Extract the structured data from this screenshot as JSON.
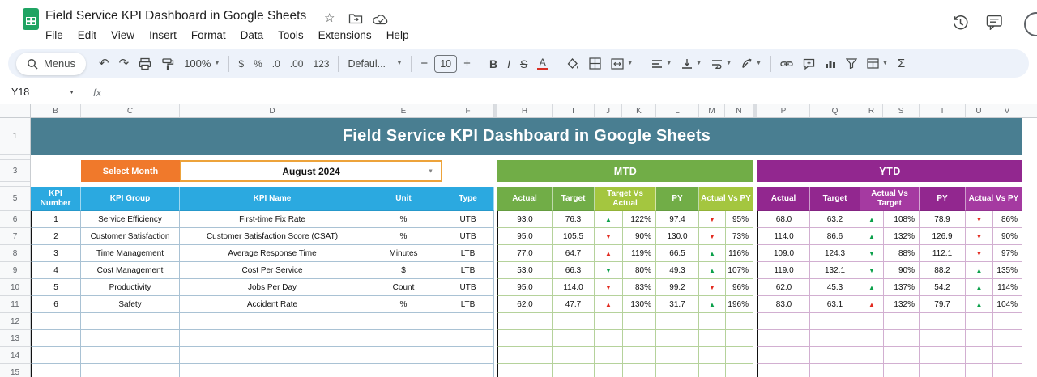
{
  "window": {
    "doc_title": "Field Service KPI Dashboard in Google Sheets",
    "menu_items": [
      "File",
      "Edit",
      "View",
      "Insert",
      "Format",
      "Data",
      "Tools",
      "Extensions",
      "Help"
    ]
  },
  "toolbar": {
    "menus_label": "Menus",
    "undo": "↶",
    "redo": "↷",
    "zoom_value": "100%",
    "currency": "$",
    "percent": "%",
    "decimal_decrease": ".0",
    "decimal_increase": ".00",
    "number_format": "123",
    "font_name": "Defaul...",
    "minus": "−",
    "font_size": "10",
    "plus": "+",
    "bold": "B",
    "italic": "I",
    "strikethrough": "S",
    "text_color": "A",
    "functions": "Σ"
  },
  "glyphs": {
    "caret": "▼",
    "star": "☆"
  },
  "formula_bar": {
    "cell_reference": "Y18",
    "fx_label": "fx"
  },
  "grid": {
    "column_letters": [
      "B",
      "C",
      "D",
      "E",
      "F",
      "H",
      "I",
      "J",
      "K",
      "L",
      "M",
      "N",
      "P",
      "Q",
      "R",
      "S",
      "T",
      "U",
      "V"
    ],
    "row_numbers": [
      "1",
      "3",
      "5",
      "6",
      "7",
      "8",
      "9",
      "10",
      "11",
      "12",
      "13",
      "14",
      "15"
    ],
    "empty_row_count": 4
  },
  "sheet": {
    "title_banner": "Field Service KPI Dashboard in Google Sheets",
    "select_month_label": "Select Month",
    "selected_month": "August 2024",
    "sections": {
      "mtd": "MTD",
      "ytd": "YTD"
    },
    "kpi_headers": {
      "number": "KPI Number",
      "group": "KPI Group",
      "name": "KPI Name",
      "unit": "Unit",
      "type": "Type"
    },
    "mtd_headers": {
      "actual": "Actual",
      "target": "Target",
      "target_vs_actual": "Target Vs Actual",
      "py": "PY",
      "actual_vs_py": "Actual Vs PY"
    },
    "ytd_headers": {
      "actual": "Actual",
      "target": "Target",
      "actual_vs_target": "Actual Vs Target",
      "py": "PY",
      "actual_vs_py": "Actual Vs PY"
    },
    "rows": [
      {
        "kpi_number": "1",
        "kpi_group": "Service Efficiency",
        "kpi_name": "First-time Fix Rate",
        "unit": "%",
        "type": "UTB",
        "mtd": {
          "actual": "93.0",
          "target": "76.3",
          "target_vs_actual": {
            "arrow": "▲",
            "trend": "good",
            "value": "122%"
          },
          "py": "97.4",
          "actual_vs_py": {
            "arrow": "▼",
            "trend": "bad",
            "value": "95%"
          }
        },
        "ytd": {
          "actual": "68.0",
          "target": "63.2",
          "actual_vs_target": {
            "arrow": "▲",
            "trend": "good",
            "value": "108%"
          },
          "py": "78.9",
          "actual_vs_py": {
            "arrow": "▼",
            "trend": "bad",
            "value": "86%"
          }
        }
      },
      {
        "kpi_number": "2",
        "kpi_group": "Customer Satisfaction",
        "kpi_name": "Customer Satisfaction Score (CSAT)",
        "unit": "%",
        "type": "UTB",
        "mtd": {
          "actual": "95.0",
          "target": "105.5",
          "target_vs_actual": {
            "arrow": "▼",
            "trend": "bad",
            "value": "90%"
          },
          "py": "130.0",
          "actual_vs_py": {
            "arrow": "▼",
            "trend": "bad",
            "value": "73%"
          }
        },
        "ytd": {
          "actual": "114.0",
          "target": "86.6",
          "actual_vs_target": {
            "arrow": "▲",
            "trend": "good",
            "value": "132%"
          },
          "py": "126.9",
          "actual_vs_py": {
            "arrow": "▼",
            "trend": "bad",
            "value": "90%"
          }
        }
      },
      {
        "kpi_number": "3",
        "kpi_group": "Time Management",
        "kpi_name": "Average Response Time",
        "unit": "Minutes",
        "type": "LTB",
        "mtd": {
          "actual": "77.0",
          "target": "64.7",
          "target_vs_actual": {
            "arrow": "▲",
            "trend": "bad",
            "value": "119%"
          },
          "py": "66.5",
          "actual_vs_py": {
            "arrow": "▲",
            "trend": "good",
            "value": "116%"
          }
        },
        "ytd": {
          "actual": "109.0",
          "target": "124.3",
          "actual_vs_target": {
            "arrow": "▼",
            "trend": "good",
            "value": "88%"
          },
          "py": "112.1",
          "actual_vs_py": {
            "arrow": "▼",
            "trend": "bad",
            "value": "97%"
          }
        }
      },
      {
        "kpi_number": "4",
        "kpi_group": "Cost Management",
        "kpi_name": "Cost Per Service",
        "unit": "$",
        "type": "LTB",
        "mtd": {
          "actual": "53.0",
          "target": "66.3",
          "target_vs_actual": {
            "arrow": "▼",
            "trend": "good",
            "value": "80%"
          },
          "py": "49.3",
          "actual_vs_py": {
            "arrow": "▲",
            "trend": "good",
            "value": "107%"
          }
        },
        "ytd": {
          "actual": "119.0",
          "target": "132.1",
          "actual_vs_target": {
            "arrow": "▼",
            "trend": "good",
            "value": "90%"
          },
          "py": "88.2",
          "actual_vs_py": {
            "arrow": "▲",
            "trend": "good",
            "value": "135%"
          }
        }
      },
      {
        "kpi_number": "5",
        "kpi_group": "Productivity",
        "kpi_name": "Jobs Per Day",
        "unit": "Count",
        "type": "UTB",
        "mtd": {
          "actual": "95.0",
          "target": "114.0",
          "target_vs_actual": {
            "arrow": "▼",
            "trend": "bad",
            "value": "83%"
          },
          "py": "99.2",
          "actual_vs_py": {
            "arrow": "▼",
            "trend": "bad",
            "value": "96%"
          }
        },
        "ytd": {
          "actual": "62.0",
          "target": "45.3",
          "actual_vs_target": {
            "arrow": "▲",
            "trend": "good",
            "value": "137%"
          },
          "py": "54.2",
          "actual_vs_py": {
            "arrow": "▲",
            "trend": "good",
            "value": "114%"
          }
        }
      },
      {
        "kpi_number": "6",
        "kpi_group": "Safety",
        "kpi_name": "Accident Rate",
        "unit": "%",
        "type": "LTB",
        "mtd": {
          "actual": "62.0",
          "target": "47.7",
          "target_vs_actual": {
            "arrow": "▲",
            "trend": "bad",
            "value": "130%"
          },
          "py": "31.7",
          "actual_vs_py": {
            "arrow": "▲",
            "trend": "good",
            "value": "196%"
          }
        },
        "ytd": {
          "actual": "83.0",
          "target": "63.1",
          "actual_vs_target": {
            "arrow": "▲",
            "trend": "bad",
            "value": "132%"
          },
          "py": "79.7",
          "actual_vs_py": {
            "arrow": "▲",
            "trend": "good",
            "value": "104%"
          }
        }
      }
    ]
  },
  "colors": {
    "sheets_green": "#1FA463",
    "banner": "#497E91",
    "select_month": "#F0792B",
    "month_border": "#EDA33B",
    "kpi_header": "#2BA9E0",
    "mtd": "#71AD47",
    "mtd_light": "#A4C63F",
    "ytd": "#92278F",
    "ytd_light": "#A53AA1",
    "arrow_up": "#0BA04A",
    "arrow_down": "#E22A1F",
    "left_border": "#A9C2D4",
    "mtd_border": "#B5D29B",
    "ytd_border": "#D2AFD1"
  }
}
